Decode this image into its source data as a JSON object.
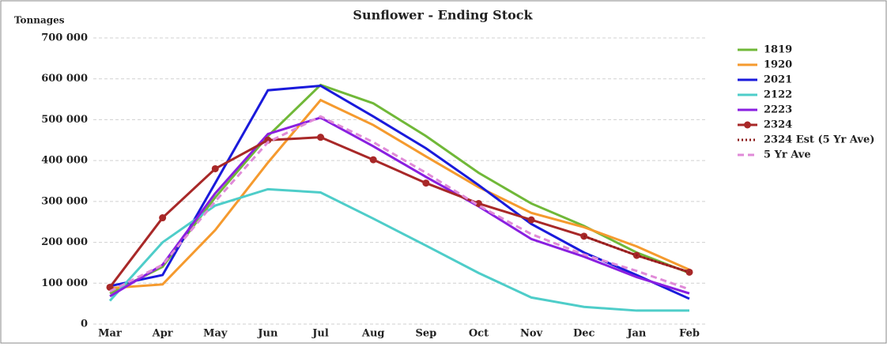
{
  "chart_data": {
    "type": "line",
    "title": "Sunflower - Ending Stock",
    "y_label": "Tonnages",
    "categories": [
      "Mar",
      "Apr",
      "May",
      "Jun",
      "Jul",
      "Aug",
      "Sep",
      "Oct",
      "Nov",
      "Dec",
      "Jan",
      "Feb"
    ],
    "ylim": [
      0,
      700000
    ],
    "yticks": [
      0,
      {
        "value": 100000,
        "label": "100 000"
      },
      {
        "value": 200000,
        "label": "200 000"
      },
      {
        "value": 300000,
        "label": "300 000"
      },
      {
        "value": 400000,
        "label": "400 000"
      },
      {
        "value": 500000,
        "label": "500 000"
      },
      {
        "value": 600000,
        "label": "600 000"
      },
      {
        "value": 700000,
        "label": "700 000"
      }
    ],
    "grid": true,
    "legend": "right",
    "series": [
      {
        "name": "1819",
        "color": "#70b838",
        "values": [
          75000,
          140000,
          310000,
          460000,
          585000,
          540000,
          460000,
          370000,
          295000,
          240000,
          175000,
          125000
        ]
      },
      {
        "name": "1920",
        "color": "#f59a2e",
        "values": [
          88000,
          97000,
          230000,
          395000,
          548000,
          487000,
          410000,
          335000,
          272000,
          237000,
          190000,
          133000
        ]
      },
      {
        "name": "2021",
        "color": "#1a1adb",
        "values": [
          93000,
          120000,
          345000,
          572000,
          583000,
          508000,
          430000,
          340000,
          245000,
          175000,
          120000,
          62000
        ]
      },
      {
        "name": "2122",
        "color": "#4ecdc9",
        "values": [
          57000,
          200000,
          290000,
          330000,
          322000,
          258000,
          192000,
          125000,
          65000,
          42000,
          33000,
          33000
        ]
      },
      {
        "name": "2223",
        "color": "#8a1fe0",
        "values": [
          68000,
          145000,
          320000,
          465000,
          505000,
          435000,
          360000,
          288000,
          208000,
          165000,
          115000,
          75000
        ]
      },
      {
        "name": "2324",
        "color": "#a82828",
        "marker": "circle",
        "values": [
          90000,
          260000,
          380000,
          450000,
          457000,
          402000,
          345000,
          295000,
          255000,
          215000,
          168000,
          127000
        ]
      },
      {
        "name": "2324 Est (5 Yr Ave)",
        "color": "#8b1a1a",
        "dash": "dotted",
        "values": [
          null,
          null,
          null,
          null,
          null,
          null,
          null,
          null,
          null,
          215000,
          168000,
          127000
        ]
      },
      {
        "name": "5 Yr Ave",
        "color": "#e08ad8",
        "dash": "dashed",
        "values": [
          80000,
          145000,
          300000,
          445000,
          508000,
          445000,
          370000,
          290000,
          220000,
          170000,
          130000,
          85000
        ]
      }
    ]
  }
}
